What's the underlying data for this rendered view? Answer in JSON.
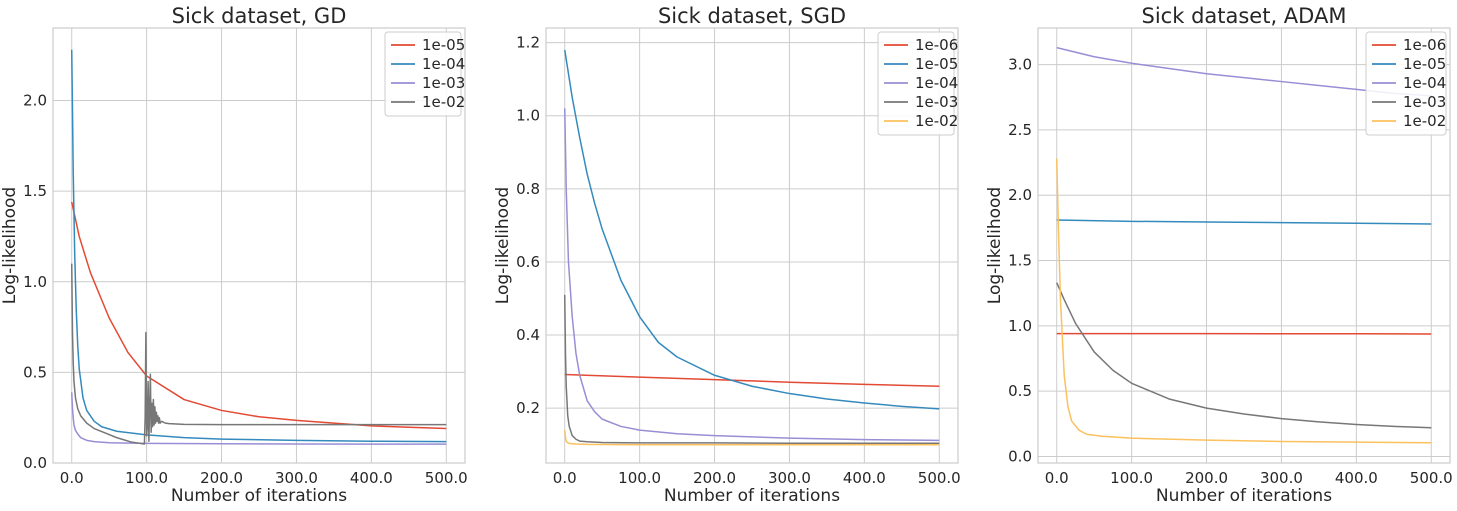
{
  "colors": {
    "plot_bg": "#ffffff",
    "grid": "#cccccc",
    "axes_edge": "#cccccc",
    "legend_bg": "#ffffff",
    "legend_edge": "#cccccc",
    "text": "#262626"
  },
  "chart_data": [
    {
      "type": "line",
      "title": "Sick dataset, GD",
      "xlabel": "Number of iterations",
      "ylabel": "Log-likelihood",
      "xlim": [
        -25,
        525
      ],
      "ylim": [
        0.0,
        2.4
      ],
      "xticks": [
        0,
        100,
        200,
        300,
        400,
        500
      ],
      "xtick_labels": [
        "0.0",
        "100.0",
        "200.0",
        "300.0",
        "400.0",
        "500.0"
      ],
      "yticks": [
        0.0,
        0.5,
        1.0,
        1.5,
        2.0
      ],
      "ytick_labels": [
        "0.0",
        "0.5",
        "1.0",
        "1.5",
        "2.0"
      ],
      "grid": true,
      "legend": "top-right",
      "series": [
        {
          "name": "1e-05",
          "color": "#E24A33",
          "x": [
            0,
            10,
            25,
            50,
            75,
            100,
            150,
            200,
            250,
            300,
            350,
            400,
            450,
            500
          ],
          "y": [
            1.44,
            1.25,
            1.05,
            0.8,
            0.61,
            0.48,
            0.35,
            0.29,
            0.255,
            0.235,
            0.22,
            0.205,
            0.197,
            0.19
          ]
        },
        {
          "name": "1e-04",
          "color": "#348ABD",
          "x": [
            0,
            2,
            4,
            6,
            8,
            10,
            15,
            20,
            30,
            40,
            60,
            100,
            150,
            200,
            300,
            400,
            500
          ],
          "y": [
            2.28,
            1.6,
            1.15,
            0.85,
            0.65,
            0.52,
            0.36,
            0.29,
            0.23,
            0.2,
            0.175,
            0.155,
            0.14,
            0.132,
            0.125,
            0.12,
            0.118
          ]
        },
        {
          "name": "1e-03",
          "color": "#988ED5",
          "x": [
            0,
            1,
            2,
            3,
            5,
            8,
            12,
            20,
            30,
            50,
            100,
            200,
            300,
            400,
            500
          ],
          "y": [
            0.39,
            0.3,
            0.25,
            0.21,
            0.18,
            0.16,
            0.14,
            0.125,
            0.118,
            0.112,
            0.108,
            0.106,
            0.105,
            0.104,
            0.104
          ]
        },
        {
          "name": "1e-02",
          "color": "#777777",
          "x": [
            0,
            1,
            2,
            3,
            5,
            8,
            12,
            20,
            30,
            45,
            60,
            80,
            97,
            98,
            99,
            100,
            101,
            102,
            103,
            104,
            105,
            106,
            107,
            108,
            109,
            110,
            111,
            112,
            113,
            114,
            115,
            116,
            117,
            118,
            120,
            125,
            130,
            140,
            150,
            200,
            300,
            400,
            500
          ],
          "y": [
            1.1,
            0.72,
            0.55,
            0.45,
            0.36,
            0.3,
            0.26,
            0.22,
            0.19,
            0.165,
            0.14,
            0.115,
            0.105,
            0.25,
            0.72,
            0.15,
            0.2,
            0.45,
            0.12,
            0.3,
            0.49,
            0.17,
            0.33,
            0.2,
            0.35,
            0.21,
            0.31,
            0.22,
            0.28,
            0.23,
            0.26,
            0.22,
            0.25,
            0.22,
            0.23,
            0.22,
            0.217,
            0.215,
            0.213,
            0.212,
            0.212,
            0.212,
            0.212
          ]
        }
      ]
    },
    {
      "type": "line",
      "title": "Sick dataset, SGD",
      "xlabel": "Number of iterations",
      "ylabel": "Log-likelihood",
      "xlim": [
        -25,
        525
      ],
      "ylim": [
        0.05,
        1.24
      ],
      "xticks": [
        0,
        100,
        200,
        300,
        400,
        500
      ],
      "xtick_labels": [
        "0.0",
        "100.0",
        "200.0",
        "300.0",
        "400.0",
        "500.0"
      ],
      "yticks": [
        0.2,
        0.4,
        0.6,
        0.8,
        1.0,
        1.2
      ],
      "ytick_labels": [
        "0.2",
        "0.4",
        "0.6",
        "0.8",
        "1.0",
        "1.2"
      ],
      "grid": true,
      "legend": "top-right",
      "series": [
        {
          "name": "1e-06",
          "color": "#E24A33",
          "x": [
            0,
            100,
            200,
            300,
            400,
            500
          ],
          "y": [
            0.292,
            0.285,
            0.278,
            0.271,
            0.265,
            0.26
          ]
        },
        {
          "name": "1e-05",
          "color": "#348ABD",
          "x": [
            0,
            10,
            20,
            30,
            40,
            50,
            75,
            100,
            125,
            150,
            200,
            250,
            300,
            350,
            400,
            450,
            500
          ],
          "y": [
            1.18,
            1.05,
            0.94,
            0.84,
            0.76,
            0.69,
            0.55,
            0.45,
            0.38,
            0.34,
            0.29,
            0.26,
            0.24,
            0.225,
            0.214,
            0.205,
            0.198
          ]
        },
        {
          "name": "1e-04",
          "color": "#988ED5",
          "x": [
            0,
            2,
            5,
            10,
            15,
            20,
            30,
            40,
            50,
            75,
            100,
            150,
            200,
            300,
            400,
            500
          ],
          "y": [
            1.02,
            0.8,
            0.6,
            0.45,
            0.35,
            0.29,
            0.22,
            0.19,
            0.17,
            0.15,
            0.14,
            0.13,
            0.125,
            0.118,
            0.114,
            0.112
          ]
        },
        {
          "name": "1e-03",
          "color": "#777777",
          "x": [
            0,
            1,
            2,
            4,
            6,
            10,
            15,
            20,
            30,
            50,
            100,
            200,
            300,
            400,
            500
          ],
          "y": [
            0.51,
            0.35,
            0.26,
            0.18,
            0.15,
            0.125,
            0.115,
            0.11,
            0.108,
            0.106,
            0.105,
            0.105,
            0.104,
            0.104,
            0.104
          ]
        },
        {
          "name": "1e-02",
          "color": "#FBC15E",
          "x": [
            0,
            1,
            2,
            4,
            8,
            15,
            30,
            100,
            200,
            300,
            400,
            500
          ],
          "y": [
            0.14,
            0.12,
            0.11,
            0.105,
            0.103,
            0.102,
            0.101,
            0.1,
            0.1,
            0.1,
            0.1,
            0.1
          ]
        }
      ]
    },
    {
      "type": "line",
      "title": "Sick dataset, ADAM",
      "xlabel": "Number of iterations",
      "ylabel": "Log-likelihood",
      "xlim": [
        -25,
        525
      ],
      "ylim": [
        -0.05,
        3.28
      ],
      "xticks": [
        0,
        100,
        200,
        300,
        400,
        500
      ],
      "xtick_labels": [
        "0.0",
        "100.0",
        "200.0",
        "300.0",
        "400.0",
        "500.0"
      ],
      "yticks": [
        0.0,
        0.5,
        1.0,
        1.5,
        2.0,
        2.5,
        3.0
      ],
      "ytick_labels": [
        "0.0",
        "0.5",
        "1.0",
        "1.5",
        "2.0",
        "2.5",
        "3.0"
      ],
      "grid": true,
      "legend": "top-right",
      "series": [
        {
          "name": "1e-06",
          "color": "#E24A33",
          "x": [
            0,
            100,
            200,
            300,
            400,
            500
          ],
          "y": [
            0.94,
            0.94,
            0.94,
            0.939,
            0.939,
            0.938
          ]
        },
        {
          "name": "1e-05",
          "color": "#348ABD",
          "x": [
            0,
            100,
            200,
            300,
            400,
            500
          ],
          "y": [
            1.81,
            1.8,
            1.795,
            1.79,
            1.785,
            1.78
          ]
        },
        {
          "name": "1e-04",
          "color": "#988ED5",
          "x": [
            0,
            50,
            100,
            150,
            200,
            250,
            300,
            350,
            400,
            450,
            500
          ],
          "y": [
            3.13,
            3.06,
            3.01,
            2.97,
            2.93,
            2.9,
            2.87,
            2.84,
            2.81,
            2.78,
            2.76
          ]
        },
        {
          "name": "1e-03",
          "color": "#777777",
          "x": [
            0,
            10,
            25,
            50,
            75,
            100,
            150,
            200,
            250,
            300,
            350,
            400,
            450,
            500
          ],
          "y": [
            1.33,
            1.2,
            1.02,
            0.8,
            0.66,
            0.56,
            0.44,
            0.37,
            0.325,
            0.29,
            0.265,
            0.245,
            0.23,
            0.22
          ]
        },
        {
          "name": "1e-02",
          "color": "#FBC15E",
          "x": [
            0,
            2,
            5,
            10,
            15,
            20,
            30,
            40,
            60,
            100,
            200,
            300,
            400,
            500
          ],
          "y": [
            2.28,
            1.8,
            1.2,
            0.62,
            0.38,
            0.27,
            0.2,
            0.17,
            0.155,
            0.14,
            0.125,
            0.115,
            0.11,
            0.105
          ]
        }
      ]
    }
  ]
}
